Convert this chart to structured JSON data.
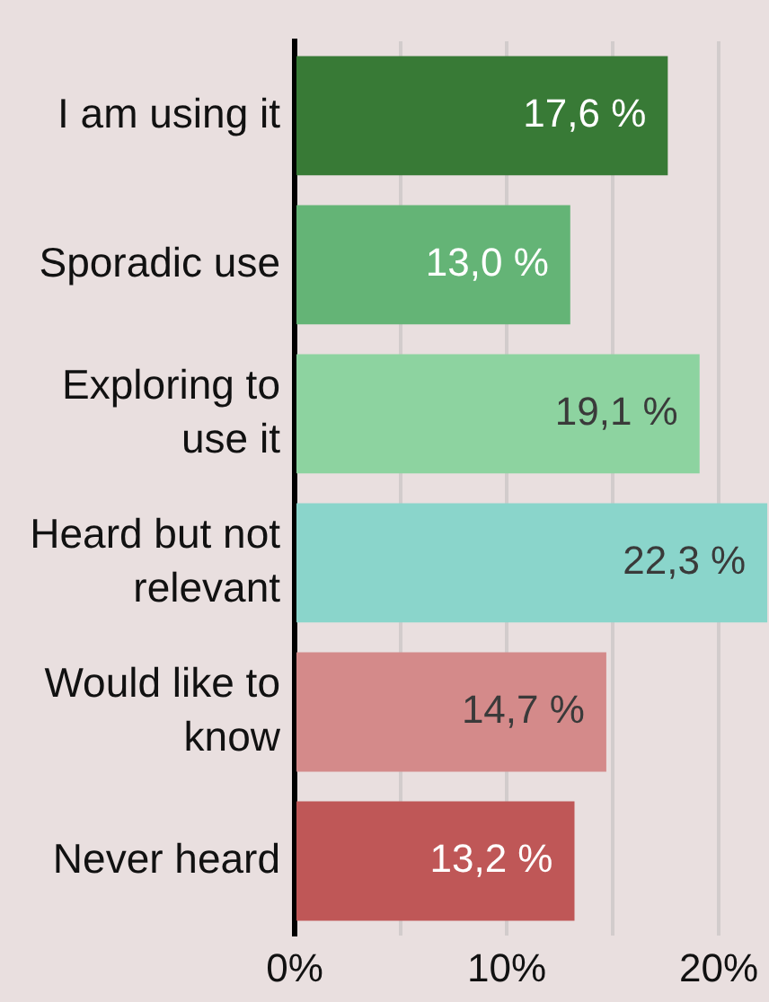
{
  "chart_data": {
    "type": "bar",
    "orientation": "horizontal",
    "categories": [
      "I am using it",
      "Sporadic use",
      "Exploring to use it",
      "Heard but not relevant",
      "Would like to know",
      "Never heard"
    ],
    "values": [
      17.6,
      13.0,
      19.1,
      22.3,
      14.7,
      13.2
    ],
    "colors": [
      "#387a36",
      "#64b476",
      "#8dd3a0",
      "#8ad5cb",
      "#d48a8a",
      "#bf5757"
    ],
    "value_labels": [
      "17,6 %",
      "13,0 %",
      "19,1 %",
      "22,3 %",
      "14,7 %",
      "13,2 %"
    ],
    "xlim": [
      0,
      22.3
    ],
    "xticks": [
      {
        "value": 0,
        "label": "0%"
      },
      {
        "value": 5,
        "label": null
      },
      {
        "value": 10,
        "label": "10%"
      },
      {
        "value": 15,
        "label": null
      },
      {
        "value": 20,
        "label": "20%"
      }
    ],
    "grid": "x",
    "legend": false
  }
}
